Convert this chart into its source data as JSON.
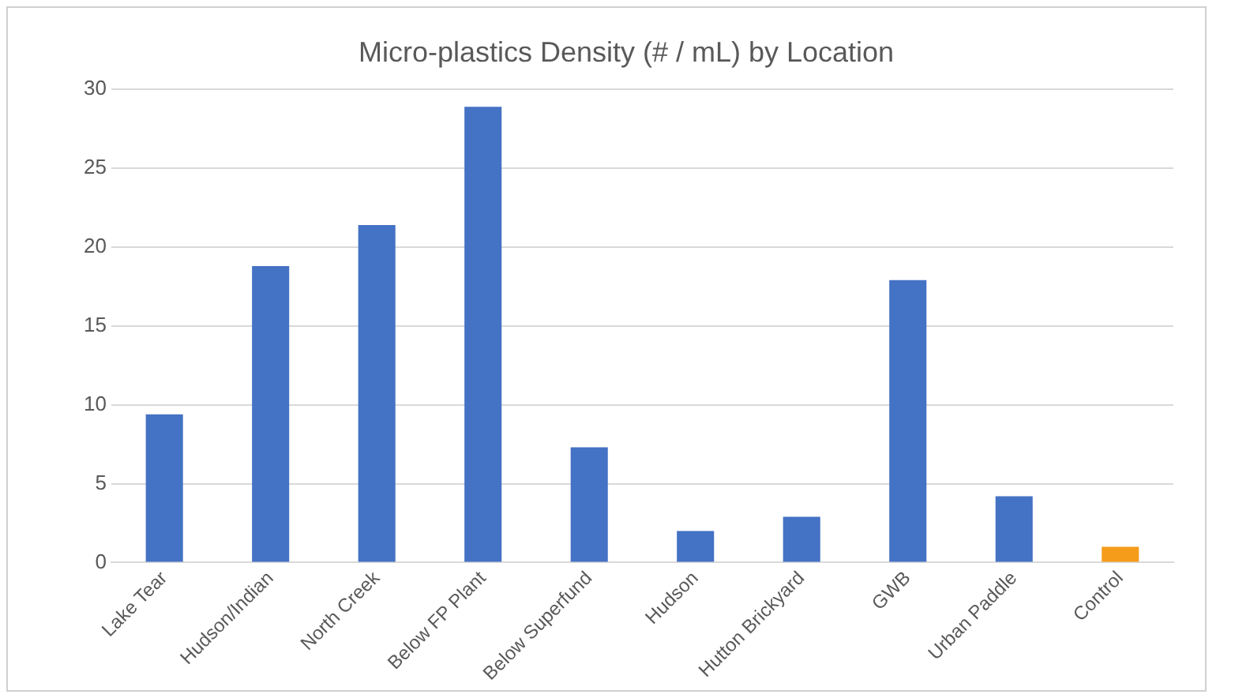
{
  "chart_data": {
    "type": "bar",
    "title": "Micro-plastics Density (# / mL) by Location",
    "categories": [
      "Lake Tear",
      "Hudson/Indian",
      "North Creek",
      "Below FP Plant",
      "Below Superfund",
      "Hudson",
      "Hutton Brickyard",
      "GWB",
      "Urban Paddle",
      "Control"
    ],
    "values": [
      9.4,
      18.8,
      21.4,
      28.9,
      7.3,
      2.0,
      2.9,
      17.9,
      4.2,
      1.0
    ],
    "colors": [
      "#4472c4",
      "#4472c4",
      "#4472c4",
      "#4472c4",
      "#4472c4",
      "#4472c4",
      "#4472c4",
      "#4472c4",
      "#4472c4",
      "#f59c1a"
    ],
    "ylim": [
      0,
      30
    ],
    "yticks": [
      0,
      5,
      10,
      15,
      20,
      25,
      30
    ],
    "grid": "y",
    "legend": false
  }
}
